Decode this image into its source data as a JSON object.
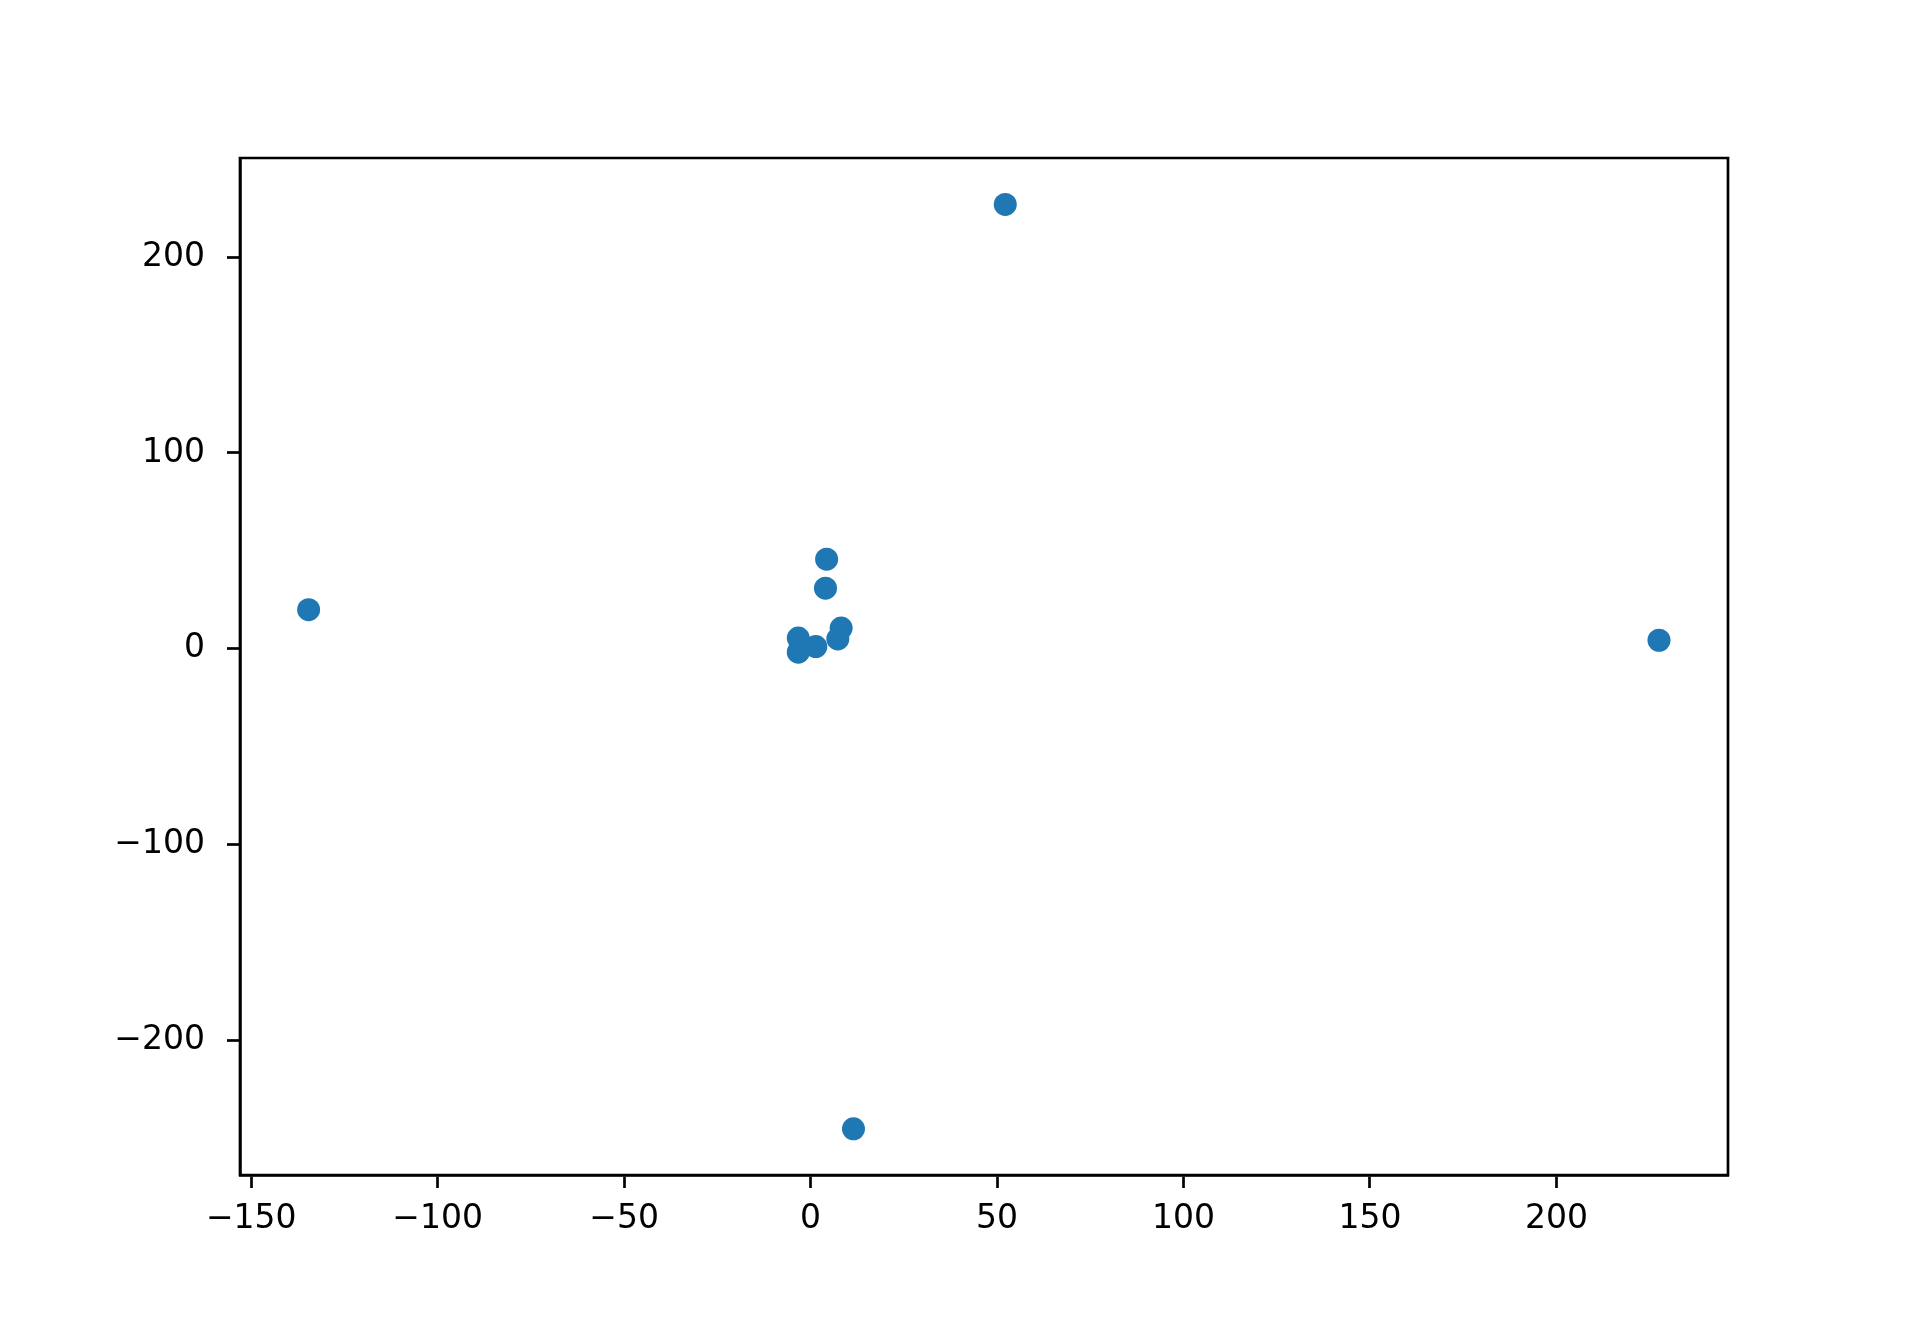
{
  "chart_data": {
    "type": "scatter",
    "x": [
      -134.6,
      52.2,
      227.5,
      11.5,
      4.3,
      4.0,
      8.2,
      7.3,
      -3.3,
      -3.3,
      1.4
    ],
    "values": [
      20,
      226.9,
      4.4,
      -245,
      45.8,
      31.0,
      10.6,
      5.1,
      5.5,
      -1.7,
      1.2
    ],
    "color": "#1f77b4",
    "marker": "circle",
    "xlim": [
      -153,
      246
    ],
    "ylim": [
      -268.6,
      250.6
    ],
    "xticks": [
      -150,
      -100,
      -50,
      0,
      50,
      100,
      150,
      200
    ],
    "yticks": [
      -200,
      -100,
      0,
      100,
      200
    ]
  }
}
